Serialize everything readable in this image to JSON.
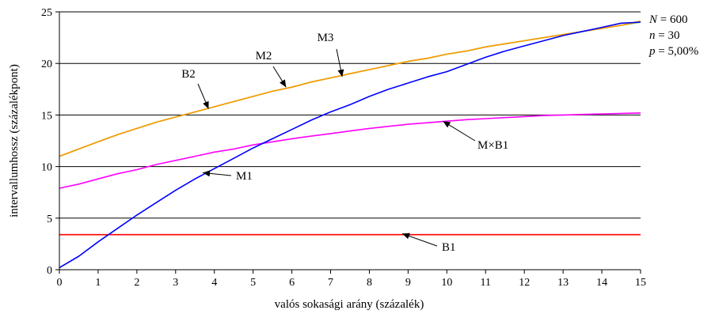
{
  "chart_data": {
    "type": "line",
    "xlabel": "valós sokasági arány (százalék)",
    "ylabel": "intervallumhossz (százalékpont)",
    "xlim": [
      0,
      15
    ],
    "ylim": [
      0,
      25
    ],
    "x_ticks": [
      "0",
      "1",
      "2",
      "3",
      "4",
      "5",
      "6",
      "7",
      "8",
      "9",
      "10",
      "11",
      "12",
      "13",
      "14",
      "15"
    ],
    "y_ticks": [
      "0",
      "5",
      "10",
      "15",
      "20",
      "25"
    ],
    "grid": "horizontal",
    "x": [
      0,
      0.5,
      1,
      1.5,
      2,
      2.5,
      3,
      3.5,
      4,
      4.5,
      5,
      5.5,
      6,
      6.5,
      7,
      7.5,
      8,
      8.5,
      9,
      9.5,
      10,
      10.5,
      11,
      11.5,
      12,
      12.5,
      13,
      13.5,
      14,
      14.5,
      15
    ],
    "series": [
      {
        "name": "B1",
        "color": "#ff0000",
        "values": [
          3.4,
          3.4,
          3.4,
          3.4,
          3.4,
          3.4,
          3.4,
          3.4,
          3.4,
          3.4,
          3.4,
          3.4,
          3.4,
          3.4,
          3.4,
          3.4,
          3.4,
          3.4,
          3.4,
          3.4,
          3.4,
          3.4,
          3.4,
          3.4,
          3.4,
          3.4,
          3.4,
          3.4,
          3.4,
          3.4,
          3.4
        ]
      },
      {
        "name": "B2",
        "color": "#33cccc",
        "values": [
          11.0,
          11.7,
          12.4,
          13.1,
          13.7,
          14.3,
          14.8,
          15.3,
          15.8,
          16.3,
          16.8,
          17.3,
          17.7,
          18.2,
          18.6,
          19.0,
          19.4,
          19.8,
          20.2,
          20.5,
          20.9,
          21.2,
          21.6,
          21.9,
          22.2,
          22.5,
          22.8,
          23.1,
          23.4,
          23.7,
          24.0
        ]
      },
      {
        "name": "M2",
        "color": "#9acd32",
        "values": [
          11.0,
          11.7,
          12.4,
          13.1,
          13.7,
          14.3,
          14.8,
          15.3,
          15.8,
          16.3,
          16.8,
          17.3,
          17.7,
          18.2,
          18.6,
          19.0,
          19.4,
          19.8,
          20.2,
          20.5,
          20.9,
          21.2,
          21.6,
          21.9,
          22.2,
          22.5,
          22.8,
          23.1,
          23.4,
          23.7,
          24.0
        ]
      },
      {
        "name": "M3",
        "color": "#ff9900",
        "values": [
          11.0,
          11.7,
          12.4,
          13.1,
          13.7,
          14.3,
          14.8,
          15.3,
          15.8,
          16.3,
          16.8,
          17.3,
          17.7,
          18.2,
          18.6,
          19.0,
          19.4,
          19.8,
          20.2,
          20.5,
          20.9,
          21.2,
          21.6,
          21.9,
          22.2,
          22.5,
          22.8,
          23.1,
          23.4,
          23.7,
          24.1
        ]
      },
      {
        "name": "M×B1",
        "color": "#ff00ff",
        "values": [
          7.9,
          8.3,
          8.8,
          9.3,
          9.7,
          10.2,
          10.6,
          11.0,
          11.4,
          11.7,
          12.1,
          12.4,
          12.7,
          12.95,
          13.2,
          13.45,
          13.7,
          13.9,
          14.1,
          14.25,
          14.4,
          14.55,
          14.65,
          14.75,
          14.85,
          14.95,
          15.0,
          15.05,
          15.1,
          15.15,
          15.2
        ]
      },
      {
        "name": "M1",
        "color": "#0000ff",
        "values": [
          0.2,
          1.3,
          2.7,
          4.0,
          5.3,
          6.5,
          7.7,
          8.8,
          9.8,
          10.8,
          11.8,
          12.7,
          13.6,
          14.5,
          15.3,
          16.0,
          16.8,
          17.5,
          18.1,
          18.7,
          19.2,
          19.9,
          20.6,
          21.2,
          21.7,
          22.2,
          22.7,
          23.1,
          23.5,
          23.9,
          24.0
        ]
      }
    ],
    "annotations": [
      {
        "label": "B2",
        "x": 3.85,
        "y": 15.6
      },
      {
        "label": "M2",
        "x": 5.85,
        "y": 17.7
      },
      {
        "label": "M3",
        "x": 7.3,
        "y": 18.7
      },
      {
        "label": "M×B1",
        "x": 9.9,
        "y": 14.4
      },
      {
        "label": "M1",
        "x": 3.7,
        "y": 9.4
      },
      {
        "label": "B1",
        "x": 8.85,
        "y": 3.5
      }
    ],
    "parameters": {
      "N_name": "N",
      "N_value": " = 600",
      "n_name": "n",
      "n_value": " = 30",
      "p_name": "p",
      "p_value": " = 5,00%"
    }
  }
}
